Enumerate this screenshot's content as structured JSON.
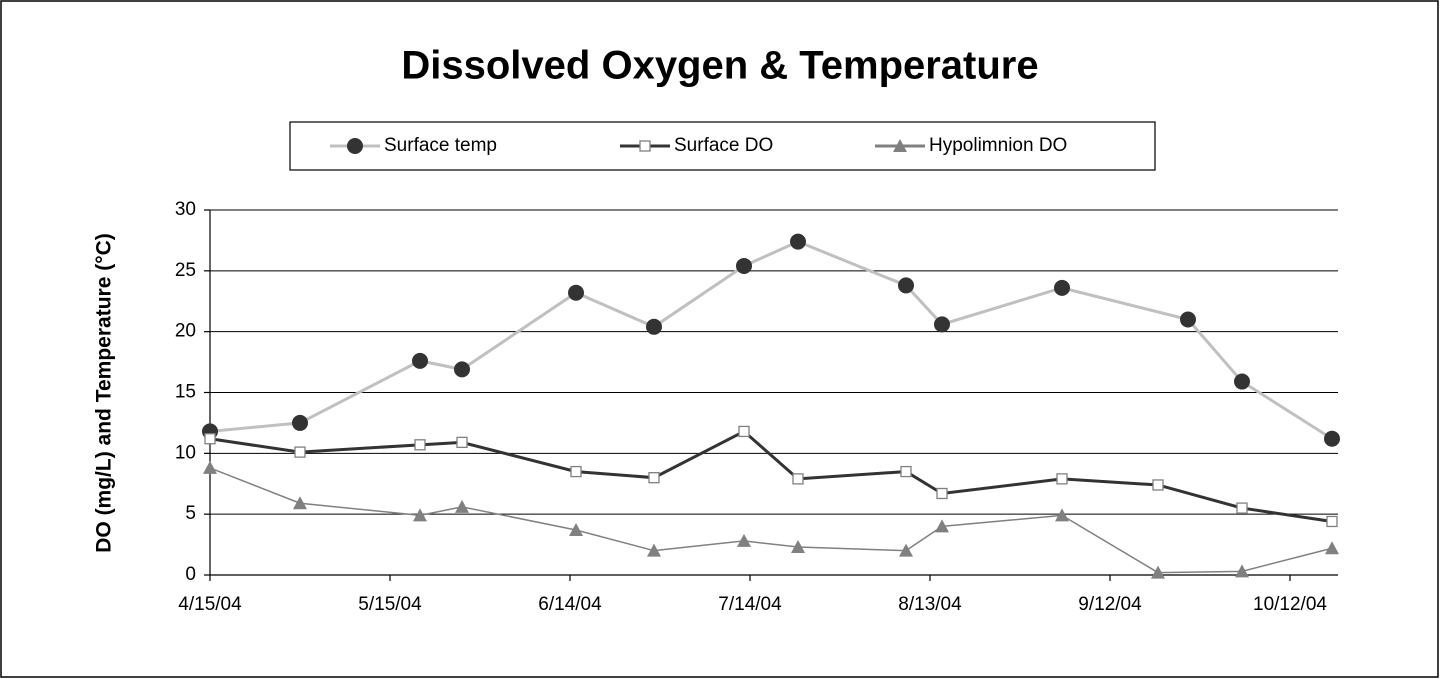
{
  "chart_data": {
    "type": "line",
    "title": "Dissolved Oxygen & Temperature",
    "ylabel": "DO (mg/L) and Temperature (°C)",
    "ylim": [
      0,
      30
    ],
    "yticks": [
      0,
      5,
      10,
      15,
      20,
      25,
      30
    ],
    "grid": true,
    "xlim": [
      "2004-04-15",
      "2004-10-20"
    ],
    "xticks": [
      {
        "value": "2004-04-15",
        "label": "4/15/04"
      },
      {
        "value": "2004-05-15",
        "label": "5/15/04"
      },
      {
        "value": "2004-06-14",
        "label": "6/14/04"
      },
      {
        "value": "2004-07-14",
        "label": "7/14/04"
      },
      {
        "value": "2004-08-13",
        "label": "8/13/04"
      },
      {
        "value": "2004-09-12",
        "label": "9/12/04"
      },
      {
        "value": "2004-10-12",
        "label": "10/12/04"
      }
    ],
    "legend": "top",
    "series": [
      {
        "name": "Surface temp",
        "color": "#c0c0c0",
        "marker": "circle",
        "marker_color": "#333333",
        "x": [
          "2004-04-15",
          "2004-04-30",
          "2004-05-20",
          "2004-05-27",
          "2004-06-15",
          "2004-06-28",
          "2004-07-13",
          "2004-07-22",
          "2004-08-09",
          "2004-08-15",
          "2004-09-04",
          "2004-09-25",
          "2004-10-04",
          "2004-10-19"
        ],
        "values": [
          11.8,
          12.5,
          17.6,
          16.9,
          23.2,
          20.4,
          25.4,
          27.4,
          23.8,
          20.6,
          23.6,
          21.0,
          15.9,
          11.2
        ]
      },
      {
        "name": "Surface DO",
        "color": "#333333",
        "marker": "square",
        "marker_color": "#ffffff",
        "x": [
          "2004-04-15",
          "2004-04-30",
          "2004-05-20",
          "2004-05-27",
          "2004-06-15",
          "2004-06-28",
          "2004-07-13",
          "2004-07-22",
          "2004-08-09",
          "2004-08-15",
          "2004-09-04",
          "2004-09-20",
          "2004-10-04",
          "2004-10-19"
        ],
        "values": [
          11.2,
          10.1,
          10.7,
          10.9,
          8.5,
          8.0,
          11.8,
          7.9,
          8.5,
          6.7,
          7.9,
          7.4,
          5.5,
          4.4
        ]
      },
      {
        "name": "Hypolimnion DO",
        "color": "#808080",
        "marker": "triangle",
        "marker_color": "#808080",
        "x": [
          "2004-04-15",
          "2004-04-30",
          "2004-05-20",
          "2004-05-27",
          "2004-06-15",
          "2004-06-28",
          "2004-07-13",
          "2004-07-22",
          "2004-08-09",
          "2004-08-15",
          "2004-09-04",
          "2004-09-20",
          "2004-10-04",
          "2004-10-19"
        ],
        "values": [
          8.8,
          5.9,
          4.9,
          5.6,
          3.7,
          2.0,
          2.8,
          2.3,
          2.0,
          4.0,
          4.9,
          0.2,
          0.3,
          2.2
        ]
      }
    ]
  }
}
